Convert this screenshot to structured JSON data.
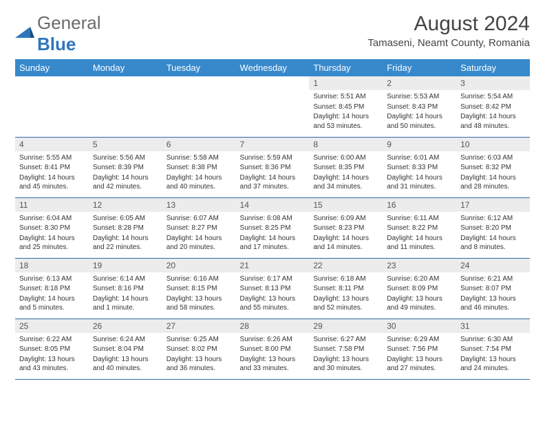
{
  "logo": {
    "word1": "General",
    "word2": "Blue"
  },
  "title": "August 2024",
  "location": "Tamaseni, Neamt County, Romania",
  "colors": {
    "header_bg": "#3789cc",
    "header_text": "#ffffff",
    "daynum_bg": "#ececec",
    "border": "#2d6aa8",
    "logo_gray": "#6b6b6b",
    "logo_blue": "#2d76bb",
    "body_text": "#333333"
  },
  "weekdays": [
    "Sunday",
    "Monday",
    "Tuesday",
    "Wednesday",
    "Thursday",
    "Friday",
    "Saturday"
  ],
  "weeks": [
    [
      null,
      null,
      null,
      null,
      {
        "n": "1",
        "sr": "5:51 AM",
        "ss": "8:45 PM",
        "dl": "14 hours and 53 minutes."
      },
      {
        "n": "2",
        "sr": "5:53 AM",
        "ss": "8:43 PM",
        "dl": "14 hours and 50 minutes."
      },
      {
        "n": "3",
        "sr": "5:54 AM",
        "ss": "8:42 PM",
        "dl": "14 hours and 48 minutes."
      }
    ],
    [
      {
        "n": "4",
        "sr": "5:55 AM",
        "ss": "8:41 PM",
        "dl": "14 hours and 45 minutes."
      },
      {
        "n": "5",
        "sr": "5:56 AM",
        "ss": "8:39 PM",
        "dl": "14 hours and 42 minutes."
      },
      {
        "n": "6",
        "sr": "5:58 AM",
        "ss": "8:38 PM",
        "dl": "14 hours and 40 minutes."
      },
      {
        "n": "7",
        "sr": "5:59 AM",
        "ss": "8:36 PM",
        "dl": "14 hours and 37 minutes."
      },
      {
        "n": "8",
        "sr": "6:00 AM",
        "ss": "8:35 PM",
        "dl": "14 hours and 34 minutes."
      },
      {
        "n": "9",
        "sr": "6:01 AM",
        "ss": "8:33 PM",
        "dl": "14 hours and 31 minutes."
      },
      {
        "n": "10",
        "sr": "6:03 AM",
        "ss": "8:32 PM",
        "dl": "14 hours and 28 minutes."
      }
    ],
    [
      {
        "n": "11",
        "sr": "6:04 AM",
        "ss": "8:30 PM",
        "dl": "14 hours and 25 minutes."
      },
      {
        "n": "12",
        "sr": "6:05 AM",
        "ss": "8:28 PM",
        "dl": "14 hours and 22 minutes."
      },
      {
        "n": "13",
        "sr": "6:07 AM",
        "ss": "8:27 PM",
        "dl": "14 hours and 20 minutes."
      },
      {
        "n": "14",
        "sr": "6:08 AM",
        "ss": "8:25 PM",
        "dl": "14 hours and 17 minutes."
      },
      {
        "n": "15",
        "sr": "6:09 AM",
        "ss": "8:23 PM",
        "dl": "14 hours and 14 minutes."
      },
      {
        "n": "16",
        "sr": "6:11 AM",
        "ss": "8:22 PM",
        "dl": "14 hours and 11 minutes."
      },
      {
        "n": "17",
        "sr": "6:12 AM",
        "ss": "8:20 PM",
        "dl": "14 hours and 8 minutes."
      }
    ],
    [
      {
        "n": "18",
        "sr": "6:13 AM",
        "ss": "8:18 PM",
        "dl": "14 hours and 5 minutes."
      },
      {
        "n": "19",
        "sr": "6:14 AM",
        "ss": "8:16 PM",
        "dl": "14 hours and 1 minute."
      },
      {
        "n": "20",
        "sr": "6:16 AM",
        "ss": "8:15 PM",
        "dl": "13 hours and 58 minutes."
      },
      {
        "n": "21",
        "sr": "6:17 AM",
        "ss": "8:13 PM",
        "dl": "13 hours and 55 minutes."
      },
      {
        "n": "22",
        "sr": "6:18 AM",
        "ss": "8:11 PM",
        "dl": "13 hours and 52 minutes."
      },
      {
        "n": "23",
        "sr": "6:20 AM",
        "ss": "8:09 PM",
        "dl": "13 hours and 49 minutes."
      },
      {
        "n": "24",
        "sr": "6:21 AM",
        "ss": "8:07 PM",
        "dl": "13 hours and 46 minutes."
      }
    ],
    [
      {
        "n": "25",
        "sr": "6:22 AM",
        "ss": "8:05 PM",
        "dl": "13 hours and 43 minutes."
      },
      {
        "n": "26",
        "sr": "6:24 AM",
        "ss": "8:04 PM",
        "dl": "13 hours and 40 minutes."
      },
      {
        "n": "27",
        "sr": "6:25 AM",
        "ss": "8:02 PM",
        "dl": "13 hours and 36 minutes."
      },
      {
        "n": "28",
        "sr": "6:26 AM",
        "ss": "8:00 PM",
        "dl": "13 hours and 33 minutes."
      },
      {
        "n": "29",
        "sr": "6:27 AM",
        "ss": "7:58 PM",
        "dl": "13 hours and 30 minutes."
      },
      {
        "n": "30",
        "sr": "6:29 AM",
        "ss": "7:56 PM",
        "dl": "13 hours and 27 minutes."
      },
      {
        "n": "31",
        "sr": "6:30 AM",
        "ss": "7:54 PM",
        "dl": "13 hours and 24 minutes."
      }
    ]
  ],
  "labels": {
    "sunrise": "Sunrise:",
    "sunset": "Sunset:",
    "daylight": "Daylight:"
  }
}
